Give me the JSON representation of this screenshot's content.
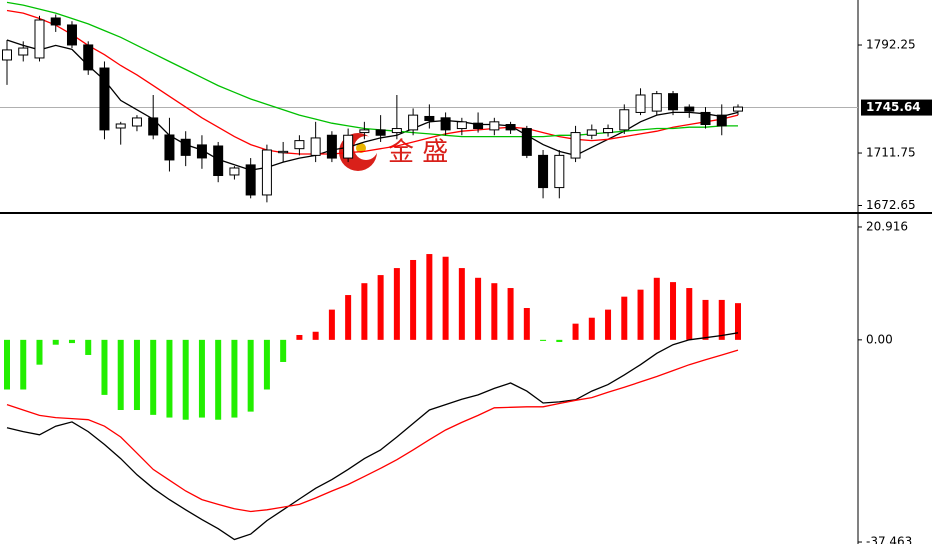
{
  "chart_data": [
    {
      "type": "candlestick",
      "open": [
        1781.1,
        1784.8,
        1782.6,
        1812.4,
        1807.2,
        1792.3,
        1775.1,
        1730.4,
        1731.9,
        1737.9,
        1725.2,
        1722,
        1717.8,
        1717,
        1695.4,
        1702.9,
        1680.5,
        1712,
        1715,
        1710,
        1725,
        1708,
        1727,
        1729,
        1727,
        1729,
        1739,
        1738,
        1730,
        1734,
        1729,
        1733,
        1730,
        1710,
        1686,
        1708,
        1725,
        1727,
        1729,
        1742,
        1743,
        1756,
        1746,
        1742,
        1740,
        1743
      ],
      "high": [
        1796,
        1795,
        1814,
        1815,
        1810,
        1795,
        1780,
        1735,
        1740,
        1755,
        1738,
        1728,
        1725,
        1720,
        1702,
        1708,
        1718,
        1720,
        1725,
        1735,
        1728,
        1730,
        1735,
        1740,
        1755,
        1745,
        1748,
        1742,
        1738,
        1742,
        1738,
        1735,
        1732,
        1714,
        1714,
        1732,
        1733,
        1733,
        1748,
        1760,
        1758,
        1758,
        1748,
        1746,
        1748,
        1748
      ],
      "low": [
        1762.5,
        1780,
        1780,
        1802,
        1790,
        1770,
        1722,
        1718,
        1728,
        1722,
        1698,
        1702,
        1700,
        1690,
        1692,
        1678,
        1675,
        1705,
        1710,
        1705,
        1705,
        1705,
        1722,
        1720,
        1722,
        1725,
        1730,
        1725,
        1725,
        1727,
        1725,
        1726,
        1708,
        1678,
        1678,
        1705,
        1722,
        1724,
        1726,
        1740,
        1740,
        1740,
        1738,
        1730,
        1725,
        1740
      ],
      "close": [
        1788.6,
        1790,
        1810.9,
        1807.2,
        1792.3,
        1773.7,
        1729,
        1733.4,
        1737.9,
        1725.2,
        1706.6,
        1710,
        1708.1,
        1695,
        1700.6,
        1680.5,
        1714,
        1713,
        1721,
        1723,
        1708,
        1725,
        1729,
        1725,
        1730,
        1740,
        1736,
        1729,
        1735,
        1730,
        1735,
        1729,
        1710,
        1686,
        1710,
        1727,
        1729,
        1730,
        1744,
        1755,
        1756,
        1744,
        1743,
        1733,
        1732,
        1746
      ],
      "up_color": "#ffffff",
      "down_color": "#000000",
      "series": [
        {
          "color": "#000000",
          "values": [
            1796,
            1792,
            1788.6,
            1792,
            1789,
            1777,
            1766,
            1751,
            1744,
            1737,
            1725,
            1718,
            1714,
            1707,
            1703,
            1699,
            1701,
            1705,
            1708,
            1710,
            1714,
            1716,
            1720,
            1723,
            1725,
            1730,
            1735,
            1736,
            1735,
            1733,
            1733,
            1732,
            1725,
            1718,
            1713,
            1710,
            1716,
            1722,
            1728,
            1735,
            1740,
            1742,
            1742,
            1741,
            1739,
            1742
          ]
        },
        {
          "color": "#ff0000",
          "values": [
            1818,
            1816,
            1812,
            1807,
            1800,
            1792,
            1785,
            1777,
            1770,
            1762,
            1754,
            1746,
            1738,
            1731,
            1724,
            1718,
            1714,
            1712,
            1711,
            1711,
            1711,
            1712,
            1713,
            1715,
            1717,
            1720,
            1723,
            1726,
            1728,
            1729,
            1730,
            1731,
            1730,
            1727,
            1724,
            1722,
            1721,
            1722,
            1724,
            1726,
            1728,
            1731,
            1733,
            1735,
            1737,
            1740
          ]
        },
        {
          "color": "#00c000",
          "values": [
            1824,
            1822,
            1819,
            1816,
            1812,
            1808,
            1803,
            1798,
            1792,
            1786,
            1780,
            1774,
            1768,
            1762,
            1757,
            1752,
            1748,
            1744,
            1740,
            1737,
            1734,
            1732,
            1730,
            1729,
            1728,
            1727,
            1726,
            1725,
            1724,
            1724,
            1724,
            1724,
            1724,
            1724,
            1725,
            1725,
            1726,
            1727,
            1728,
            1729,
            1730,
            1730,
            1731,
            1731,
            1732,
            1732
          ]
        }
      ],
      "ylim": [
        1667.8,
        1825.8
      ],
      "yticks": [
        1672.65,
        1711.75,
        1792.25
      ],
      "current_price": 1745.64,
      "watermark": "金 盛"
    },
    {
      "type": "macd",
      "histogram": {
        "up_color": "#ff0000",
        "down_color": "#22ee00",
        "values": [
          -9.2,
          -9.2,
          -4.6,
          -0.9,
          -0.6,
          -2.8,
          -10.2,
          -13,
          -13,
          -13.9,
          -14.4,
          -14.8,
          -14.4,
          -14.8,
          -14.4,
          -13.3,
          -9.2,
          -4.1,
          0.9,
          1.5,
          5.6,
          8.3,
          10.5,
          12,
          13.3,
          14.8,
          15.9,
          15.4,
          13.3,
          11.5,
          10.5,
          9.6,
          5.9,
          -0.2,
          -0.4,
          3,
          4.1,
          5.6,
          8,
          9.3,
          11.5,
          10.7,
          9.6,
          7.4,
          7.4,
          6.8
        ]
      },
      "series": [
        {
          "color": "#000000",
          "values": [
            -16.3,
            -17,
            -17.6,
            -16,
            -15.2,
            -17,
            -19.4,
            -22,
            -25,
            -27.5,
            -29.6,
            -31.5,
            -33.3,
            -35,
            -37,
            -36,
            -33.5,
            -31.5,
            -29.5,
            -27.5,
            -25.9,
            -24,
            -22,
            -20.4,
            -18,
            -15.5,
            -13,
            -12,
            -11,
            -10.2,
            -9,
            -8,
            -9.5,
            -11.7,
            -11.5,
            -11.1,
            -9.5,
            -8.3,
            -6.5,
            -4.6,
            -2.5,
            -0.9,
            0,
            0.4,
            0.8,
            1.3
          ]
        },
        {
          "color": "#ff0000",
          "values": [
            -12,
            -13,
            -14,
            -14.4,
            -14.6,
            -14.8,
            -16,
            -18,
            -21,
            -24,
            -26,
            -28,
            -29.6,
            -30.5,
            -31.3,
            -31.8,
            -31.5,
            -31,
            -30.5,
            -29.3,
            -28,
            -26.8,
            -25.3,
            -23.8,
            -22.2,
            -20.4,
            -18.5,
            -16.7,
            -15.3,
            -14,
            -12.6,
            -12.5,
            -12.4,
            -12.4,
            -11.8,
            -11.2,
            -10.7,
            -9.7,
            -8.8,
            -7.8,
            -6.8,
            -5.7,
            -4.6,
            -3.7,
            -2.8,
            -1.9
          ]
        }
      ],
      "ylim": [
        -37.83,
        22.95
      ],
      "yticks": [
        -37.463,
        {
          "value": 0,
          "label": "0.00"
        },
        20.916
      ]
    }
  ]
}
